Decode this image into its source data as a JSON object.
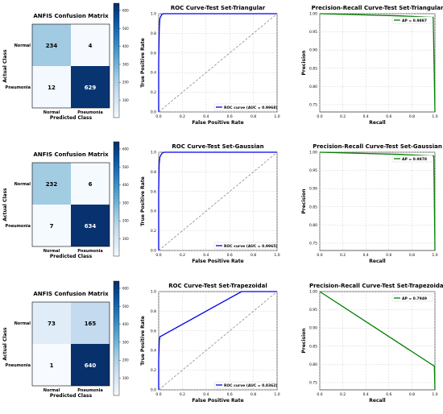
{
  "chart_data": [
    {
      "type": "heatmap",
      "title": "ANFIS Confusion Matrix",
      "xlabel": "Predicted Class",
      "ylabel": "Actual Class",
      "x_ticklabels": [
        "Normal",
        "Pneumonia"
      ],
      "y_ticklabels": [
        "Normal",
        "Pneumonia"
      ],
      "matrix": [
        [
          234,
          4
        ],
        [
          12,
          629
        ]
      ],
      "colorbar_ticks": [
        100,
        200,
        300,
        400,
        500,
        600
      ],
      "colormap": "Blues"
    },
    {
      "type": "line",
      "title": "ROC Curve-Test Set-Triangular",
      "xlabel": "False Positive Rate",
      "ylabel": "True Positive Rate",
      "xlim": [
        0,
        1
      ],
      "ylim": [
        0,
        1
      ],
      "ticks": [
        "0.0",
        "0.2",
        "0.4",
        "0.6",
        "0.8",
        "1.0"
      ],
      "grid": true,
      "legend_position": "lower-right",
      "series": [
        {
          "name": "ROC curve (AUC = 0.9968)",
          "color": "#0000ee",
          "x": [
            0,
            0,
            0.005,
            0.01,
            0.017,
            0.025,
            0.04,
            1.0
          ],
          "y": [
            0,
            0.5,
            0.85,
            0.95,
            0.97,
            0.99,
            1.0,
            1.0
          ]
        },
        {
          "name": "",
          "style": "dashed",
          "color": "#666666",
          "x": [
            0,
            1
          ],
          "y": [
            0,
            1
          ]
        }
      ]
    },
    {
      "type": "line",
      "title": "Precision-Recall Curve-Test Set-Triangular",
      "xlabel": "Recall",
      "ylabel": "Precision",
      "xlim": [
        0,
        1
      ],
      "ylim": [
        0.73,
        1.0
      ],
      "xticks": [
        "0.0",
        "0.2",
        "0.4",
        "0.6",
        "0.8",
        "1.0"
      ],
      "yticks": [
        "0.75",
        "0.80",
        "0.85",
        "0.90",
        "0.95",
        "1.00"
      ],
      "grid": true,
      "legend_position": "top-right",
      "series": [
        {
          "name": "AP = 0.9887",
          "color": "#008000",
          "x": [
            0,
            0.7,
            0.98,
            0.985,
            1.0
          ],
          "y": [
            1.0,
            0.994,
            0.99,
            0.99,
            0.73
          ]
        }
      ]
    },
    {
      "type": "heatmap",
      "title": "ANFIS Confusion Matrix",
      "xlabel": "Predicted Class",
      "ylabel": "Actual Class",
      "x_ticklabels": [
        "Normal",
        "Pneumonia"
      ],
      "y_ticklabels": [
        "Normal",
        "Pneumonia"
      ],
      "matrix": [
        [
          232,
          6
        ],
        [
          7,
          634
        ]
      ],
      "colorbar_ticks": [
        100,
        200,
        300,
        400,
        500,
        600
      ],
      "colormap": "Blues"
    },
    {
      "type": "line",
      "title": "ROC Curve-Test Set-Gaussian",
      "xlabel": "False Positive Rate",
      "ylabel": "True Positive Rate",
      "xlim": [
        0,
        1
      ],
      "ylim": [
        0,
        1
      ],
      "ticks": [
        "0.0",
        "0.2",
        "0.4",
        "0.6",
        "0.8",
        "1.0"
      ],
      "grid": true,
      "legend_position": "lower-right",
      "series": [
        {
          "name": "ROC curve (AUC = 0.9965)",
          "color": "#0000ee",
          "x": [
            0,
            0,
            0.004,
            0.01,
            0.02,
            0.03,
            0.045,
            1.0
          ],
          "y": [
            0,
            0.6,
            0.88,
            0.95,
            0.975,
            0.99,
            1.0,
            1.0
          ]
        },
        {
          "name": "",
          "style": "dashed",
          "color": "#666666",
          "x": [
            0,
            1
          ],
          "y": [
            0,
            1
          ]
        }
      ]
    },
    {
      "type": "line",
      "title": "Precision-Recall Curve-Test Set-Gaussian",
      "xlabel": "Recall",
      "ylabel": "Precision",
      "xlim": [
        0,
        1
      ],
      "ylim": [
        0.73,
        1.0
      ],
      "xticks": [
        "0.0",
        "0.2",
        "0.4",
        "0.6",
        "0.8",
        "1.0"
      ],
      "yticks": [
        "0.75",
        "0.80",
        "0.85",
        "0.90",
        "0.95",
        "1.00"
      ],
      "grid": true,
      "legend_position": "top-right",
      "series": [
        {
          "name": "AP = 0.9878",
          "color": "#008000",
          "x": [
            0,
            0.7,
            0.985,
            0.99,
            1.0
          ],
          "y": [
            1.0,
            0.994,
            0.99,
            0.99,
            0.73
          ]
        }
      ]
    },
    {
      "type": "heatmap",
      "title": "ANFIS Confusion Matrix",
      "xlabel": "Predicted Class",
      "ylabel": "Actual Class",
      "x_ticklabels": [
        "Normal",
        "Pneumonia"
      ],
      "y_ticklabels": [
        "Normal",
        "Pneumonia"
      ],
      "matrix": [
        [
          73,
          165
        ],
        [
          1,
          640
        ]
      ],
      "colorbar_ticks": [
        100,
        200,
        300,
        400,
        500,
        600
      ],
      "colormap": "Blues"
    },
    {
      "type": "line",
      "title": "ROC Curve-Test Set-Trapezoidal",
      "xlabel": "False Positive Rate",
      "ylabel": "True Positive Rate",
      "xlim": [
        0,
        1
      ],
      "ylim": [
        0,
        1
      ],
      "ticks": [
        "0.0",
        "0.2",
        "0.4",
        "0.6",
        "0.8",
        "1.0"
      ],
      "grid": true,
      "legend_position": "lower-right",
      "series": [
        {
          "name": "ROC curve (AUC = 0.8362)",
          "color": "#0000ee",
          "x": [
            0,
            0,
            0.005,
            0.01,
            0.7,
            1.0
          ],
          "y": [
            0,
            0.3,
            0.5,
            0.54,
            1.0,
            1.0
          ]
        },
        {
          "name": "",
          "style": "dashed",
          "color": "#666666",
          "x": [
            0,
            1
          ],
          "y": [
            0,
            1
          ]
        }
      ]
    },
    {
      "type": "line",
      "title": "Precision-Recall Curve-Test Set-Trapezoidal",
      "xlabel": "Recall",
      "ylabel": "Precision",
      "xlim": [
        0,
        1
      ],
      "ylim": [
        0.73,
        1.0
      ],
      "xticks": [
        "0.0",
        "0.2",
        "0.4",
        "0.6",
        "0.8",
        "1.0"
      ],
      "yticks": [
        "0.75",
        "0.80",
        "0.85",
        "0.90",
        "0.95",
        "1.00"
      ],
      "grid": true,
      "legend_position": "top-right",
      "series": [
        {
          "name": "AP = 0.7949",
          "color": "#008000",
          "x": [
            0,
            0.995,
            1.0
          ],
          "y": [
            1.0,
            0.795,
            0.73
          ]
        }
      ]
    }
  ]
}
